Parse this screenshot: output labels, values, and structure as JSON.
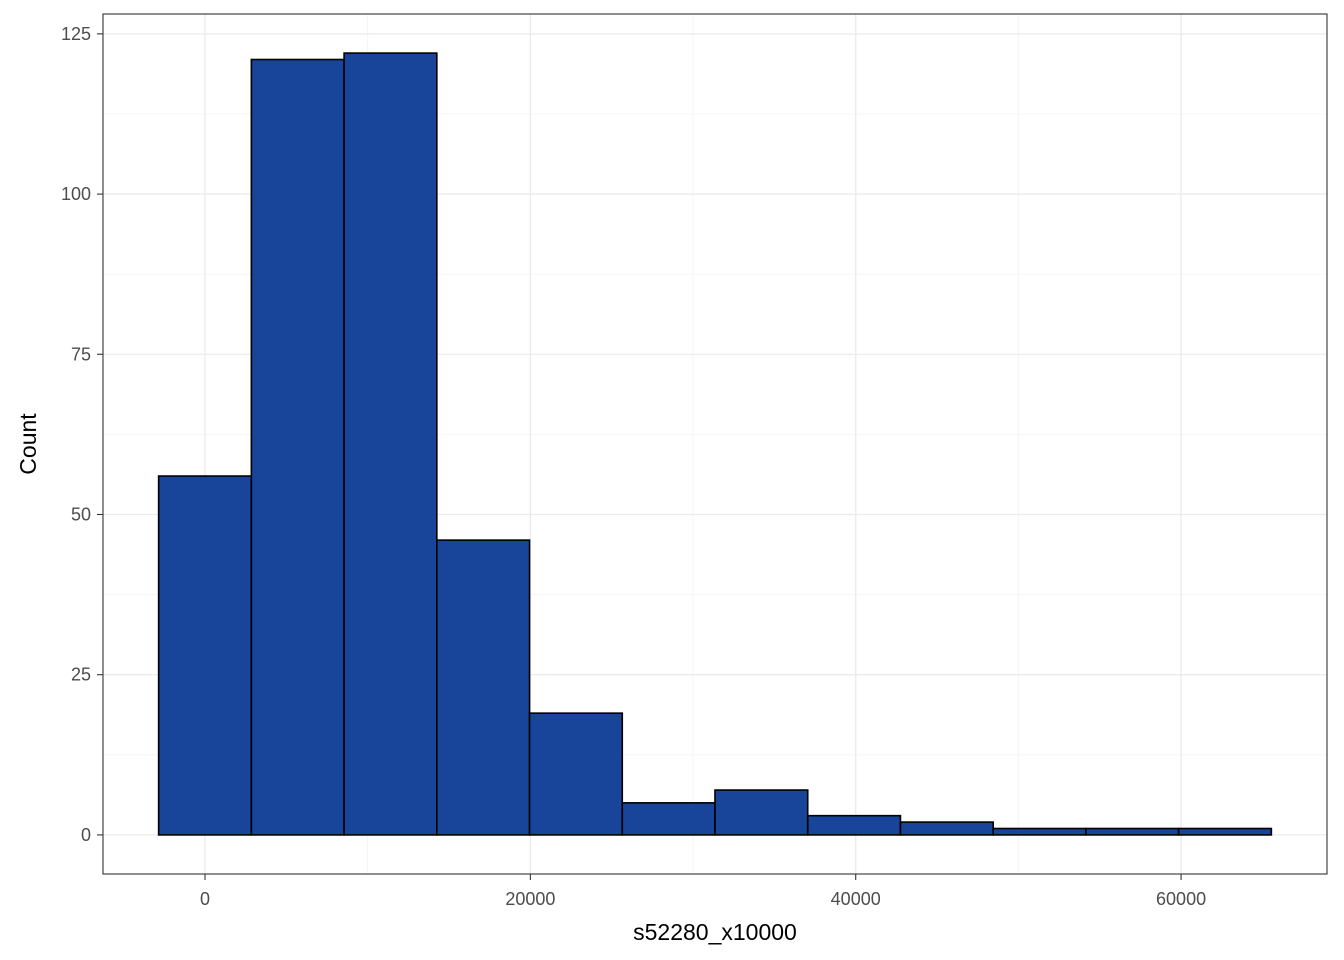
{
  "chart_data": {
    "type": "bar",
    "subtype": "histogram",
    "xlabel": "s52280_x10000",
    "ylabel": "Count",
    "bins": [
      {
        "x0": -2850,
        "x1": 2850,
        "count": 56
      },
      {
        "x0": 2850,
        "x1": 8550,
        "count": 121
      },
      {
        "x0": 8550,
        "x1": 14250,
        "count": 122
      },
      {
        "x0": 14250,
        "x1": 19950,
        "count": 46
      },
      {
        "x0": 19950,
        "x1": 25650,
        "count": 19
      },
      {
        "x0": 25650,
        "x1": 31350,
        "count": 5
      },
      {
        "x0": 31350,
        "x1": 37050,
        "count": 7
      },
      {
        "x0": 37050,
        "x1": 42750,
        "count": 3
      },
      {
        "x0": 42750,
        "x1": 48450,
        "count": 2
      },
      {
        "x0": 48450,
        "x1": 54150,
        "count": 1
      },
      {
        "x0": 54150,
        "x1": 59850,
        "count": 1
      },
      {
        "x0": 59850,
        "x1": 65550,
        "count": 1
      }
    ],
    "xlim": [
      -6270,
      68970
    ],
    "ylim": [
      -6.1,
      128.1
    ],
    "x_ticks": [
      0,
      20000,
      40000,
      60000
    ],
    "x_tick_labels": [
      "0",
      "20000",
      "40000",
      "60000"
    ],
    "y_ticks": [
      0,
      25,
      50,
      75,
      100,
      125
    ],
    "y_tick_labels": [
      "0",
      "25",
      "50",
      "75",
      "100",
      "125"
    ],
    "grid": true,
    "colors": {
      "bar_fill": "#184499",
      "bar_stroke": "#000000",
      "grid_major": "#ebebeb",
      "grid_minor": "#f5f5f5",
      "panel_border": "#333333",
      "tick_text": "#4d4d4d"
    }
  }
}
